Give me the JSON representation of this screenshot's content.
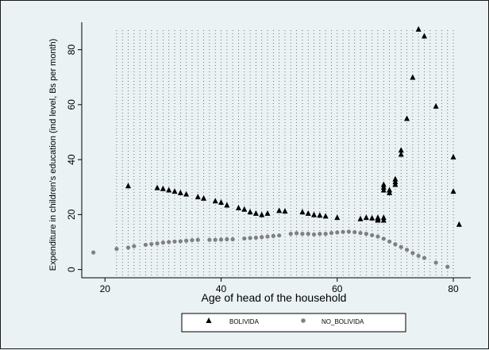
{
  "chart_data": {
    "type": "scatter",
    "xlabel": "Age of head of the household",
    "ylabel": "Expenditure in children's education (ind level, Bs per month)",
    "xlim": [
      16,
      83
    ],
    "ylim": [
      -3,
      90
    ],
    "xticks": [
      20,
      40,
      60,
      80
    ],
    "yticks": [
      0,
      20,
      40,
      60,
      80
    ],
    "grid": "dotted vertical lines at each integer age from 22 to 80",
    "legend_position": "bottom-center",
    "series": [
      {
        "name": "BOLIVIDA",
        "marker": "triangle",
        "color": "#000000",
        "points": [
          [
            24,
            30.5
          ],
          [
            29,
            29.8
          ],
          [
            30,
            29.5
          ],
          [
            31,
            29.0
          ],
          [
            32,
            28.5
          ],
          [
            33,
            28.0
          ],
          [
            34,
            27.5
          ],
          [
            36,
            26.5
          ],
          [
            37,
            26.0
          ],
          [
            39,
            25.0
          ],
          [
            40,
            24.5
          ],
          [
            41,
            23.5
          ],
          [
            43,
            22.5
          ],
          [
            44,
            22.0
          ],
          [
            45,
            21.0
          ],
          [
            46,
            20.5
          ],
          [
            47,
            20.0
          ],
          [
            48,
            20.5
          ],
          [
            50,
            21.5
          ],
          [
            51,
            21.3
          ],
          [
            54,
            21.0
          ],
          [
            55,
            20.5
          ],
          [
            56,
            20.0
          ],
          [
            57,
            19.8
          ],
          [
            58,
            19.5
          ],
          [
            60,
            19.0
          ],
          [
            64,
            18.5
          ],
          [
            65,
            19.0
          ],
          [
            66,
            18.8
          ],
          [
            67,
            18.5
          ],
          [
            67,
            18.0
          ],
          [
            67,
            19.0
          ],
          [
            68,
            18.0
          ],
          [
            68,
            19.0
          ],
          [
            68,
            29.0
          ],
          [
            68,
            30.0
          ],
          [
            68,
            31.0
          ],
          [
            69,
            28.0
          ],
          [
            69,
            29.0
          ],
          [
            70,
            31.0
          ],
          [
            70,
            32.0
          ],
          [
            70,
            33.0
          ],
          [
            71,
            42.0
          ],
          [
            71,
            43.5
          ],
          [
            72,
            55.0
          ],
          [
            73,
            70.0
          ],
          [
            74,
            87.5
          ],
          [
            75,
            85.0
          ],
          [
            77,
            59.5
          ],
          [
            80,
            41.0
          ],
          [
            80,
            28.5
          ],
          [
            81,
            16.5
          ]
        ]
      },
      {
        "name": "NO_BOLIVIDA",
        "marker": "circle",
        "color": "#808080",
        "points": [
          [
            18,
            6.2
          ],
          [
            22,
            7.5
          ],
          [
            24,
            8.0
          ],
          [
            25,
            8.5
          ],
          [
            27,
            9.0
          ],
          [
            28,
            9.3
          ],
          [
            29,
            9.5
          ],
          [
            30,
            9.8
          ],
          [
            31,
            10.0
          ],
          [
            32,
            10.2
          ],
          [
            33,
            10.3
          ],
          [
            34,
            10.5
          ],
          [
            35,
            10.7
          ],
          [
            36,
            10.8
          ],
          [
            38,
            10.8
          ],
          [
            39,
            10.8
          ],
          [
            40,
            10.9
          ],
          [
            41,
            11.0
          ],
          [
            42,
            11.0
          ],
          [
            44,
            11.3
          ],
          [
            45,
            11.5
          ],
          [
            46,
            11.6
          ],
          [
            47,
            11.8
          ],
          [
            48,
            12.0
          ],
          [
            49,
            12.2
          ],
          [
            50,
            12.4
          ],
          [
            52,
            13.0
          ],
          [
            53,
            13.2
          ],
          [
            54,
            13.0
          ],
          [
            55,
            13.0
          ],
          [
            56,
            12.8
          ],
          [
            57,
            13.0
          ],
          [
            58,
            13.0
          ],
          [
            59,
            13.3
          ],
          [
            60,
            13.5
          ],
          [
            61,
            13.7
          ],
          [
            62,
            13.8
          ],
          [
            63,
            13.6
          ],
          [
            64,
            13.3
          ],
          [
            65,
            13.0
          ],
          [
            66,
            12.5
          ],
          [
            67,
            12.0
          ],
          [
            68,
            11.2
          ],
          [
            69,
            10.2
          ],
          [
            70,
            9.2
          ],
          [
            71,
            8.2
          ],
          [
            72,
            7.2
          ],
          [
            73,
            6.0
          ],
          [
            74,
            5.0
          ],
          [
            75,
            4.2
          ],
          [
            77,
            2.5
          ],
          [
            79,
            1.0
          ]
        ]
      }
    ]
  }
}
